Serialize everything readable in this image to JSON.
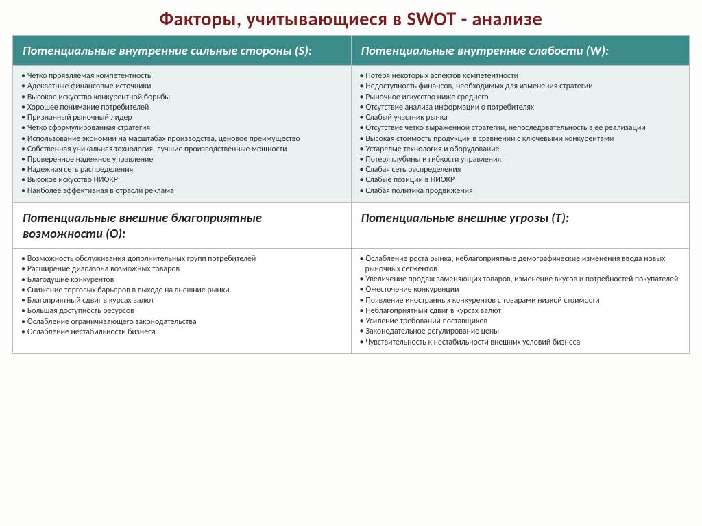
{
  "title": "Факторы, учитывающиеся в SWOT - анализе",
  "swot": {
    "s": {
      "header": "Потенциальные внутренние сильные стороны (S):",
      "items": [
        "Четко проявляемая компетентность",
        "Адекватные финансовые источники",
        "Высокое искусство конкурентной борьбы",
        "Хорошее понимание потребителей",
        "Признанный рыночный лидер",
        "Четко сформулированная стратегия",
        "Использование экономии на масштабах производства, ценовое преимущество",
        "Собственная уникальная технология, лучшие производственные мощности",
        "Проверенное надежное управление",
        "Надежная сеть распределения",
        "Высокое искусство НИОКР",
        "Наиболее эффективная в отрасли реклама"
      ]
    },
    "w": {
      "header": "Потенциальные внутренние слабости (W):",
      "items": [
        "Потеря некоторых аспектов компетентности",
        "Недоступность финансов, необходимых для изменения стратегии",
        "Рыночное искусство ниже среднего",
        "Отсутствие анализа информации о потребителях",
        "Слабый участник рынка",
        "Отсутствие четко выраженной стратегии, непоследовательность в ее реализации",
        "Высокая стоимость продукции в сравнении с ключевыми конкурентами",
        "Устарелые технология и оборудование",
        "Потеря глубины и гибкости управления",
        "Слабая сеть распределения",
        "Слабые позиции в НИОКР",
        "Слабая политика продвижения"
      ]
    },
    "o": {
      "header": "Потенциальные внешние благоприятные возможности (О):",
      "items": [
        "Возможность обслуживания дополнительных групп потребителей",
        "Расширение диапазона возможных товаров",
        "Благодушие конкурентов",
        "Снижение торговых барьеров в выходе на внешние рынки",
        "Благоприятный сдвиг в курсах валют",
        "Большая доступность ресурсов",
        "Ослабление ограничивающего законодательства",
        "Ослабление нестабильности бизнеса"
      ]
    },
    "t": {
      "header": "Потенциальные внешние угрозы (Т):",
      "items": [
        "Ослабление роста рынка, неблагоприятные демографические изменения ввода новых рыночных сегментов",
        "Увеличение продаж заменяющих товаров, изменение вкусов и потребностей покупателей",
        "Ожесточение конкуренции",
        "Появление иностранных конкурентов с товарами низкой стоимости",
        "Неблагоприятный сдвиг в курсах валют",
        "Усиление требований поставщиков",
        "Законодательное регулирование цены",
        "Чувствительность к нестабильности внешних условий бизнеса"
      ]
    }
  }
}
